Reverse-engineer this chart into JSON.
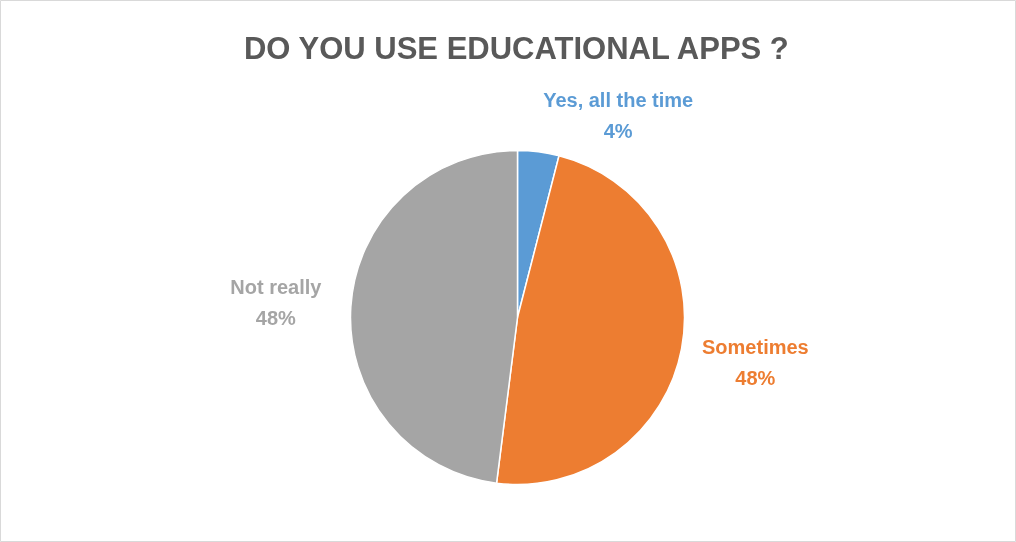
{
  "chart_data": {
    "type": "pie",
    "title": "DO YOU USE EDUCATIONAL APPS ?",
    "categories": [
      "Yes, all the time",
      "Sometimes",
      "Not really"
    ],
    "values": [
      4,
      48,
      48
    ],
    "colors": [
      "#5b9bd5",
      "#ed7d31",
      "#a5a5a5"
    ],
    "value_labels": [
      "4%",
      "48%",
      "48%"
    ]
  }
}
